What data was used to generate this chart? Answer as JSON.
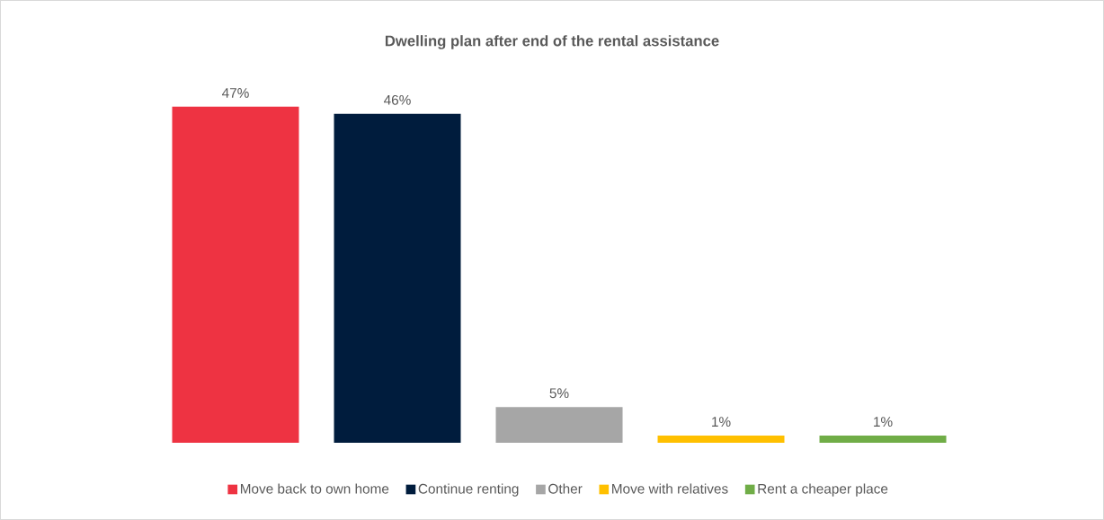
{
  "chart_data": {
    "type": "bar",
    "title": "Dwelling plan after end of the rental assistance",
    "categories": [
      null
    ],
    "legend": "bottom",
    "series": [
      {
        "name": "Move back to own home",
        "color": "#ee3342",
        "values": [
          47
        ],
        "value_labels": [
          "47%"
        ]
      },
      {
        "name": "Continue renting",
        "color": "#001c3d",
        "values": [
          46
        ],
        "value_labels": [
          "46%"
        ]
      },
      {
        "name": "Other",
        "color": "#a6a6a6",
        "values": [
          5
        ],
        "value_labels": [
          "5%"
        ]
      },
      {
        "name": "Move with relatives",
        "color": "#ffc000",
        "values": [
          1
        ],
        "value_labels": [
          "1%"
        ]
      },
      {
        "name": "Rent a cheaper place",
        "color": "#70ad47",
        "values": [
          1
        ],
        "value_labels": [
          "1%"
        ]
      }
    ]
  }
}
